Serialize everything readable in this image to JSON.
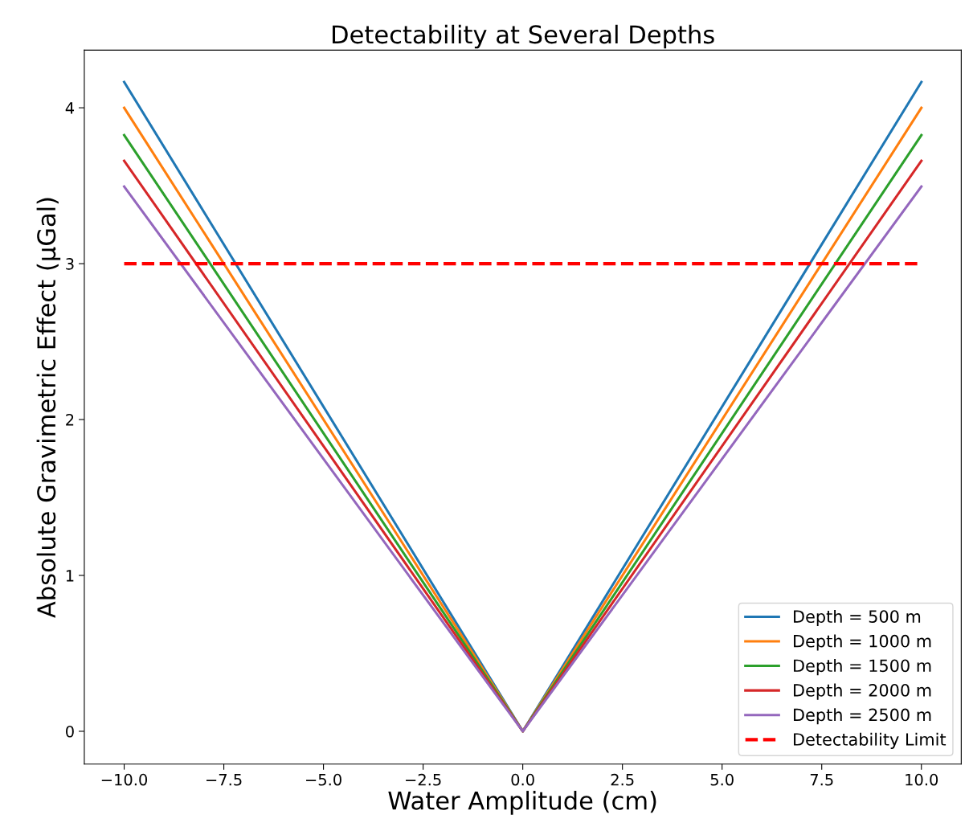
{
  "chart_data": {
    "type": "line",
    "title": "Detectability at Several Depths",
    "xlabel": "Water Amplitude (cm)",
    "ylabel": "Absolute Gravimetric Effect (μGal)",
    "x": [
      -10,
      0,
      10
    ],
    "series": [
      {
        "name": "Depth = 500 m",
        "color": "#1f77b4",
        "values": [
          4.165,
          0,
          4.165
        ]
      },
      {
        "name": "Depth = 1000 m",
        "color": "#ff7f0e",
        "values": [
          4.0,
          0,
          4.0
        ]
      },
      {
        "name": "Depth = 1500 m",
        "color": "#2ca02c",
        "values": [
          3.825,
          0,
          3.825
        ]
      },
      {
        "name": "Depth = 2000 m",
        "color": "#d62728",
        "values": [
          3.66,
          0,
          3.66
        ]
      },
      {
        "name": "Depth = 2500 m",
        "color": "#9467bd",
        "values": [
          3.495,
          0,
          3.495
        ]
      },
      {
        "name": "Detectability Limit",
        "color": "#ff0000",
        "values": [
          3,
          3,
          3
        ],
        "line_style": "dashed"
      }
    ],
    "xlim": [
      -11,
      11
    ],
    "ylim": [
      -0.21,
      4.37
    ],
    "xticks": [
      {
        "value": -10,
        "label": "−10.0"
      },
      {
        "value": -7.5,
        "label": "−7.5"
      },
      {
        "value": -5,
        "label": "−5.0"
      },
      {
        "value": -2.5,
        "label": "−2.5"
      },
      {
        "value": 0,
        "label": "0.0"
      },
      {
        "value": 2.5,
        "label": "2.5"
      },
      {
        "value": 5,
        "label": "5.0"
      },
      {
        "value": 7.5,
        "label": "7.5"
      },
      {
        "value": 10,
        "label": "10.0"
      }
    ],
    "yticks": [
      0,
      1,
      2,
      3,
      4
    ],
    "grid": false,
    "legend": "bottom right",
    "marker": "none",
    "line_style": "solid"
  }
}
